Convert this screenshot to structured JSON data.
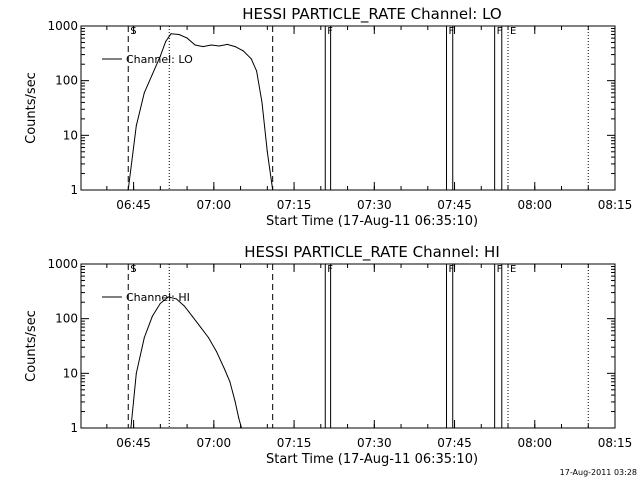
{
  "footer_timestamp": "17-Aug-2011 03:28",
  "chart_data": [
    {
      "type": "line",
      "title": "HESSI PARTICLE_RATE Channel: LO",
      "xlabel": "Start Time (17-Aug-11 06:35:10)",
      "ylabel": "Counts/sec",
      "xlim": [
        "06:35:10",
        "08:15:00"
      ],
      "ylim": [
        1,
        1000
      ],
      "y_scale": "log",
      "x_tick_labels": [
        "06:45",
        "07:00",
        "07:15",
        "07:30",
        "07:45",
        "08:00",
        "08:15"
      ],
      "y_tick_labels": [
        "1",
        "10",
        "100",
        "1000"
      ],
      "series": [
        {
          "name": "Channel: LO",
          "x": [
            "06:44:00",
            "06:45:30",
            "06:47:00",
            "06:48:30",
            "06:50:00",
            "06:51:00",
            "06:52:00",
            "06:53:30",
            "06:55:00",
            "06:56:30",
            "06:58:00",
            "06:59:30",
            "07:01:00",
            "07:02:30",
            "07:04:00",
            "07:05:30",
            "07:07:00",
            "07:08:00",
            "07:09:00",
            "07:10:00",
            "07:11:00"
          ],
          "y": [
            1,
            15,
            60,
            130,
            280,
            520,
            720,
            700,
            600,
            450,
            420,
            450,
            430,
            460,
            420,
            350,
            250,
            150,
            40,
            5,
            1
          ]
        }
      ],
      "vertical_markers": [
        {
          "label": "S",
          "x": "06:44:00",
          "style": "dashed"
        },
        {
          "label": "",
          "x": "06:51:40",
          "style": "dotted"
        },
        {
          "label": "",
          "x": "07:11:00",
          "style": "dashed"
        },
        {
          "label": "F",
          "x": "07:20:50",
          "style": "solid"
        },
        {
          "label": "",
          "x": "07:21:50",
          "style": "solid"
        },
        {
          "label": "F",
          "x": "07:43:30",
          "style": "solid"
        },
        {
          "label": "",
          "x": "07:44:40",
          "style": "solid"
        },
        {
          "label": "F",
          "x": "07:52:30",
          "style": "solid"
        },
        {
          "label": "",
          "x": "07:53:50",
          "style": "solid"
        },
        {
          "label": "E",
          "x": "07:55:00",
          "style": "dotted"
        },
        {
          "label": "",
          "x": "08:10:00",
          "style": "dotted"
        }
      ]
    },
    {
      "type": "line",
      "title": "HESSI PARTICLE_RATE Channel: HI",
      "xlabel": "Start Time (17-Aug-11 06:35:10)",
      "ylabel": "Counts/sec",
      "xlim": [
        "06:35:10",
        "08:15:00"
      ],
      "ylim": [
        1,
        1000
      ],
      "y_scale": "log",
      "x_tick_labels": [
        "06:45",
        "07:00",
        "07:15",
        "07:30",
        "07:45",
        "08:00",
        "08:15"
      ],
      "y_tick_labels": [
        "1",
        "10",
        "100",
        "1000"
      ],
      "series": [
        {
          "name": "Channel: HI",
          "x": [
            "06:44:30",
            "06:45:30",
            "06:47:00",
            "06:48:30",
            "06:50:00",
            "06:51:30",
            "06:53:00",
            "06:54:30",
            "06:56:00",
            "06:57:30",
            "06:59:00",
            "07:00:30",
            "07:02:00",
            "07:03:00",
            "07:04:00",
            "07:04:40",
            "07:05:10"
          ],
          "y": [
            1,
            10,
            45,
            110,
            190,
            250,
            230,
            170,
            110,
            70,
            45,
            25,
            12,
            7,
            3,
            1.5,
            1
          ]
        }
      ],
      "vertical_markers": [
        {
          "label": "S",
          "x": "06:44:00",
          "style": "dashed"
        },
        {
          "label": "",
          "x": "06:51:40",
          "style": "dotted"
        },
        {
          "label": "",
          "x": "07:11:00",
          "style": "dashed"
        },
        {
          "label": "F",
          "x": "07:20:50",
          "style": "solid"
        },
        {
          "label": "",
          "x": "07:21:50",
          "style": "solid"
        },
        {
          "label": "F",
          "x": "07:43:30",
          "style": "solid"
        },
        {
          "label": "",
          "x": "07:44:40",
          "style": "solid"
        },
        {
          "label": "F",
          "x": "07:52:30",
          "style": "solid"
        },
        {
          "label": "",
          "x": "07:53:50",
          "style": "solid"
        },
        {
          "label": "E",
          "x": "07:55:00",
          "style": "dotted"
        },
        {
          "label": "",
          "x": "08:10:00",
          "style": "dotted"
        }
      ]
    }
  ]
}
